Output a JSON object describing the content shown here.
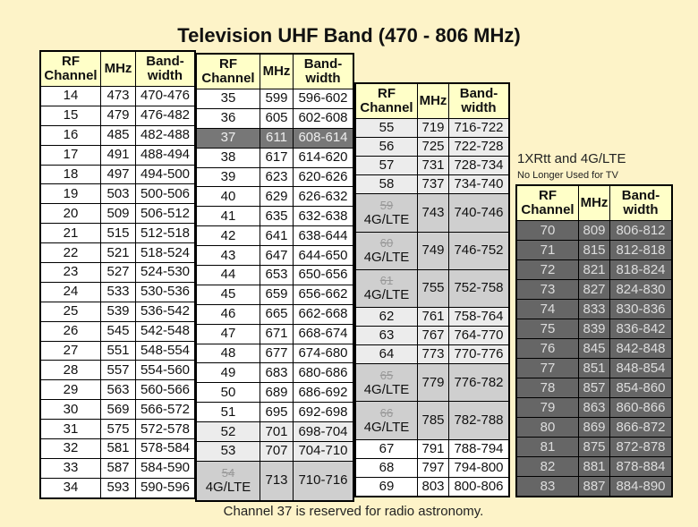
{
  "title": "Television UHF Band (470 - 806 MHz)",
  "columns": [
    "RF Channel",
    "MHz",
    "Band-width"
  ],
  "caption": "1XRtt and 4G/LTE",
  "subcaption": "No Longer Used for TV",
  "footer": "Channel 37 is reserved for radio astronomy.",
  "tables": [
    {
      "rows": [
        {
          "channel": 14,
          "mhz": 473,
          "band": "470-476"
        },
        {
          "channel": 15,
          "mhz": 479,
          "band": "476-482"
        },
        {
          "channel": 16,
          "mhz": 485,
          "band": "482-488"
        },
        {
          "channel": 17,
          "mhz": 491,
          "band": "488-494"
        },
        {
          "channel": 18,
          "mhz": 497,
          "band": "494-500"
        },
        {
          "channel": 19,
          "mhz": 503,
          "band": "500-506"
        },
        {
          "channel": 20,
          "mhz": 509,
          "band": "506-512"
        },
        {
          "channel": 21,
          "mhz": 515,
          "band": "512-518"
        },
        {
          "channel": 22,
          "mhz": 521,
          "band": "518-524"
        },
        {
          "channel": 23,
          "mhz": 527,
          "band": "524-530"
        },
        {
          "channel": 24,
          "mhz": 533,
          "band": "530-536"
        },
        {
          "channel": 25,
          "mhz": 539,
          "band": "536-542"
        },
        {
          "channel": 26,
          "mhz": 545,
          "band": "542-548"
        },
        {
          "channel": 27,
          "mhz": 551,
          "band": "548-554"
        },
        {
          "channel": 28,
          "mhz": 557,
          "band": "554-560"
        },
        {
          "channel": 29,
          "mhz": 563,
          "band": "560-566"
        },
        {
          "channel": 30,
          "mhz": 569,
          "band": "566-572"
        },
        {
          "channel": 31,
          "mhz": 575,
          "band": "572-578"
        },
        {
          "channel": 32,
          "mhz": 581,
          "band": "578-584"
        },
        {
          "channel": 33,
          "mhz": 587,
          "band": "584-590"
        },
        {
          "channel": 34,
          "mhz": 593,
          "band": "590-596"
        }
      ]
    },
    {
      "rows": [
        {
          "channel": 35,
          "mhz": 599,
          "band": "596-602"
        },
        {
          "channel": 36,
          "mhz": 605,
          "band": "602-608"
        },
        {
          "channel": 37,
          "mhz": 611,
          "band": "608-614"
        },
        {
          "channel": 38,
          "mhz": 617,
          "band": "614-620"
        },
        {
          "channel": 39,
          "mhz": 623,
          "band": "620-626"
        },
        {
          "channel": 40,
          "mhz": 629,
          "band": "626-632"
        },
        {
          "channel": 41,
          "mhz": 635,
          "band": "632-638"
        },
        {
          "channel": 42,
          "mhz": 641,
          "band": "638-644"
        },
        {
          "channel": 43,
          "mhz": 647,
          "band": "644-650"
        },
        {
          "channel": 44,
          "mhz": 653,
          "band": "650-656"
        },
        {
          "channel": 45,
          "mhz": 659,
          "band": "656-662"
        },
        {
          "channel": 46,
          "mhz": 665,
          "band": "662-668"
        },
        {
          "channel": 47,
          "mhz": 671,
          "band": "668-674"
        },
        {
          "channel": 48,
          "mhz": 677,
          "band": "674-680"
        },
        {
          "channel": 49,
          "mhz": 683,
          "band": "680-686"
        },
        {
          "channel": 50,
          "mhz": 689,
          "band": "686-692"
        },
        {
          "channel": 51,
          "mhz": 695,
          "band": "692-698"
        },
        {
          "channel": 52,
          "mhz": 701,
          "band": "698-704"
        },
        {
          "channel": 53,
          "mhz": 707,
          "band": "704-710"
        },
        {
          "channel": 54,
          "mhz": 713,
          "band": "710-716",
          "note": "4G/LTE"
        }
      ]
    },
    {
      "rows": [
        {
          "channel": 55,
          "mhz": 719,
          "band": "716-722"
        },
        {
          "channel": 56,
          "mhz": 725,
          "band": "722-728"
        },
        {
          "channel": 57,
          "mhz": 731,
          "band": "728-734"
        },
        {
          "channel": 58,
          "mhz": 737,
          "band": "734-740"
        },
        {
          "channel": 59,
          "mhz": 743,
          "band": "740-746",
          "note": "4G/LTE"
        },
        {
          "channel": 60,
          "mhz": 749,
          "band": "746-752",
          "note": "4G/LTE"
        },
        {
          "channel": 61,
          "mhz": 755,
          "band": "752-758",
          "note": "4G/LTE"
        },
        {
          "channel": 62,
          "mhz": 761,
          "band": "758-764"
        },
        {
          "channel": 63,
          "mhz": 767,
          "band": "764-770"
        },
        {
          "channel": 64,
          "mhz": 773,
          "band": "770-776"
        },
        {
          "channel": 65,
          "mhz": 779,
          "band": "776-782",
          "note": "4G/LTE"
        },
        {
          "channel": 66,
          "mhz": 785,
          "band": "782-788",
          "note": "4G/LTE"
        },
        {
          "channel": 67,
          "mhz": 791,
          "band": "788-794"
        },
        {
          "channel": 68,
          "mhz": 797,
          "band": "794-800"
        },
        {
          "channel": 69,
          "mhz": 803,
          "band": "800-806"
        }
      ]
    },
    {
      "rows": [
        {
          "channel": 70,
          "mhz": 809,
          "band": "806-812"
        },
        {
          "channel": 71,
          "mhz": 815,
          "band": "812-818"
        },
        {
          "channel": 72,
          "mhz": 821,
          "band": "818-824"
        },
        {
          "channel": 73,
          "mhz": 827,
          "band": "824-830"
        },
        {
          "channel": 74,
          "mhz": 833,
          "band": "830-836"
        },
        {
          "channel": 75,
          "mhz": 839,
          "band": "836-842"
        },
        {
          "channel": 76,
          "mhz": 845,
          "band": "842-848"
        },
        {
          "channel": 77,
          "mhz": 851,
          "band": "848-854"
        },
        {
          "channel": 78,
          "mhz": 857,
          "band": "854-860"
        },
        {
          "channel": 79,
          "mhz": 863,
          "band": "860-866"
        },
        {
          "channel": 80,
          "mhz": 869,
          "band": "866-872"
        },
        {
          "channel": 81,
          "mhz": 875,
          "band": "872-878"
        },
        {
          "channel": 82,
          "mhz": 881,
          "band": "878-884"
        },
        {
          "channel": 83,
          "mhz": 887,
          "band": "884-890"
        }
      ]
    }
  ]
}
